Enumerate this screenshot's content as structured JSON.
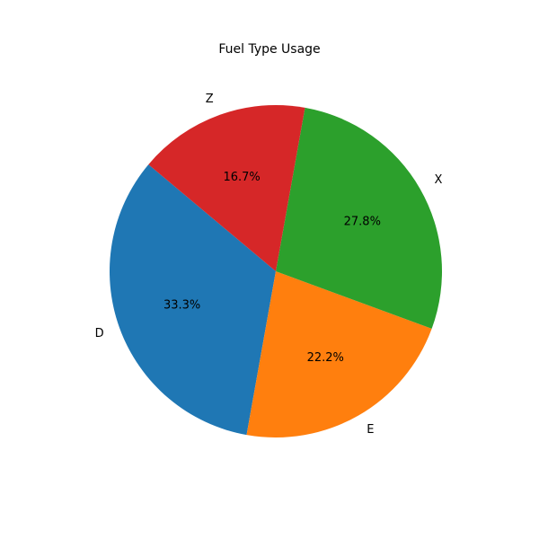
{
  "chart_data": {
    "type": "pie",
    "title": "Fuel Type Usage",
    "categories": [
      "D",
      "E",
      "X",
      "Z"
    ],
    "values": [
      33.3,
      22.2,
      27.8,
      16.7
    ],
    "percent_labels": [
      "33.3%",
      "22.2%",
      "27.8%",
      "16.7%"
    ],
    "colors": [
      "#1f77b4",
      "#ff7f0e",
      "#2ca02c",
      "#d62728"
    ],
    "start_angle_deg": 140,
    "direction": "counterclockwise",
    "legend": "none"
  }
}
